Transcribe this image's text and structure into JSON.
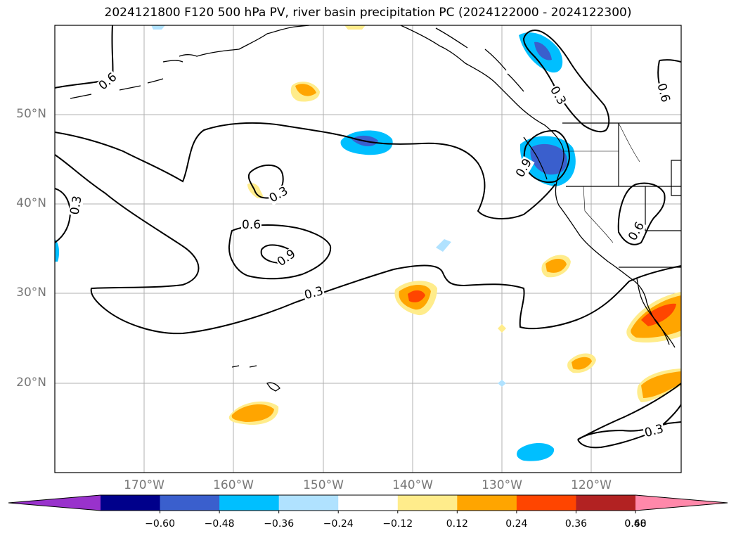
{
  "title": "2024121800 F120 500 hPa PV, river basin precipitation PC (2024122000 - 2024122300)",
  "latitude_labels": [
    "50°N",
    "40°N",
    "30°N",
    "20°N"
  ],
  "longitude_labels": [
    "170°W",
    "160°W",
    "150°W",
    "140°W",
    "130°W",
    "120°W"
  ],
  "contour_labels": [
    "0.6",
    "0.3",
    "0.3",
    "0.6",
    "0.9",
    "0.3",
    "0.3",
    "0.9",
    "0.6",
    "0.6",
    "0.3"
  ],
  "colorbar": {
    "ticks": [
      "−0.60",
      "−0.48",
      "−0.36",
      "−0.24",
      "−0.12",
      "0.12",
      "0.24",
      "0.36",
      "0.48",
      "0.60"
    ],
    "colors": [
      "#9932CC",
      "#00008B",
      "#3A5FCD",
      "#00BFFF",
      "#B0E2FF",
      "#FFFFFF",
      "#FFEC8B",
      "#FFA500",
      "#FF4500",
      "#B22222",
      "#FF88AA"
    ]
  }
}
